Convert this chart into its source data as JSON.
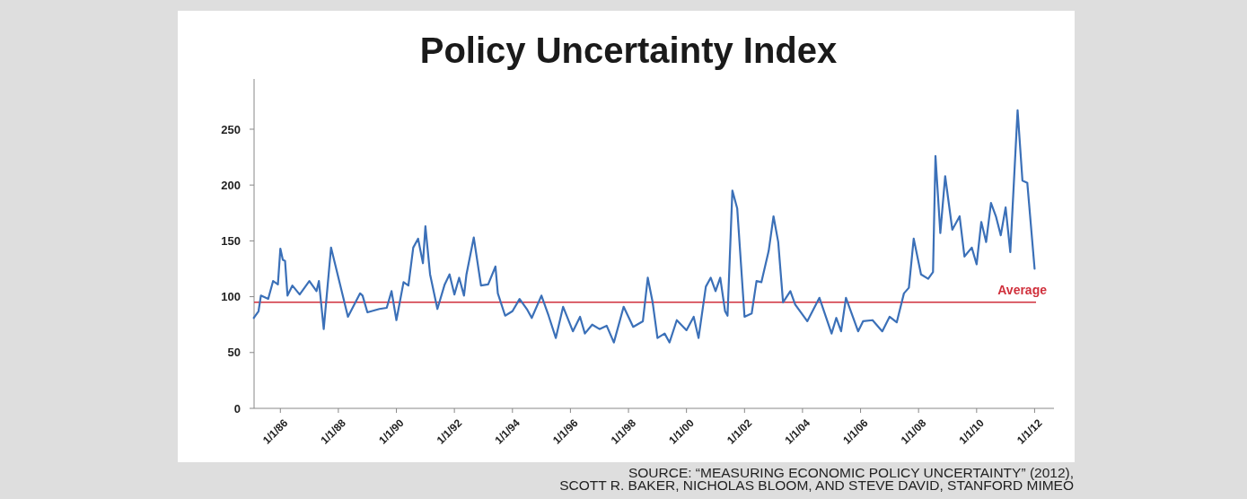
{
  "chart_data": {
    "type": "line",
    "title": "Policy Uncertainty Index",
    "x": [
      "1985-02",
      "1985-04",
      "1985-05",
      "1985-08",
      "1985-10",
      "1985-12",
      "1986-01",
      "1986-02",
      "1986-03",
      "1986-04",
      "1986-06",
      "1986-09",
      "1987-01",
      "1987-04",
      "1987-05",
      "1987-07",
      "1987-10",
      "1988-05",
      "1988-10",
      "1988-11",
      "1989-01",
      "1989-06",
      "1989-09",
      "1989-11",
      "1990-01",
      "1990-04",
      "1990-06",
      "1990-08",
      "1990-10",
      "1990-12",
      "1991-01",
      "1991-03",
      "1991-06",
      "1991-09",
      "1991-11",
      "1992-01",
      "1992-03",
      "1992-05",
      "1992-06",
      "1992-09",
      "1992-12",
      "1993-03",
      "1993-06",
      "1993-07",
      "1993-10",
      "1994-01",
      "1994-04",
      "1994-07",
      "1994-09",
      "1995-01",
      "1995-04",
      "1995-07",
      "1995-10",
      "1996-02",
      "1996-05",
      "1996-07",
      "1996-10",
      "1997-01",
      "1997-04",
      "1997-07",
      "1997-11",
      "1998-03",
      "1998-07",
      "1998-09",
      "1998-11",
      "1999-01",
      "1999-04",
      "1999-06",
      "1999-09",
      "2000-01",
      "2000-04",
      "2000-06",
      "2000-09",
      "2000-11",
      "2001-01",
      "2001-03",
      "2001-05",
      "2001-06",
      "2001-08",
      "2001-10",
      "2002-01",
      "2002-04",
      "2002-06",
      "2002-08",
      "2002-11",
      "2003-01",
      "2003-03",
      "2003-05",
      "2003-08",
      "2003-10",
      "2004-03",
      "2004-08",
      "2005-01",
      "2005-03",
      "2005-05",
      "2005-07",
      "2005-12",
      "2006-02",
      "2006-06",
      "2006-10",
      "2007-01",
      "2007-04",
      "2007-07",
      "2007-09",
      "2007-11",
      "2008-02",
      "2008-05",
      "2008-07",
      "2008-08",
      "2008-10",
      "2008-12",
      "2009-03",
      "2009-06",
      "2009-08",
      "2009-11",
      "2010-01",
      "2010-03",
      "2010-05",
      "2010-07",
      "2010-09",
      "2010-11",
      "2011-01",
      "2011-03",
      "2011-06",
      "2011-08",
      "2011-10",
      "2012-01"
    ],
    "series": [
      {
        "color": "#3b70b8",
        "values": [
          81,
          87,
          101,
          98,
          114,
          111,
          143,
          133,
          132,
          101,
          110,
          102,
          114,
          105,
          114,
          71,
          144,
          82,
          103,
          101,
          86,
          89,
          90,
          105,
          79,
          113,
          110,
          144,
          152,
          130,
          163,
          120,
          89,
          111,
          120,
          102,
          117,
          101,
          120,
          153,
          110,
          111,
          127,
          103,
          83,
          87,
          98,
          89,
          81,
          101,
          83,
          63,
          91,
          69,
          82,
          67,
          75,
          71,
          74,
          59,
          91,
          73,
          78,
          117,
          95,
          63,
          67,
          59,
          79,
          70,
          82,
          63,
          109,
          117,
          105,
          117,
          87,
          83,
          195,
          179,
          82,
          85,
          114,
          113,
          141,
          172,
          149,
          95,
          105,
          93,
          78,
          99,
          67,
          81,
          69,
          99,
          69,
          78,
          79,
          69,
          82,
          77,
          103,
          108,
          152,
          120,
          116,
          122,
          226,
          157,
          208,
          160,
          172,
          136,
          144,
          129,
          167,
          149,
          184,
          172,
          155,
          180,
          140,
          267,
          204,
          202,
          125
        ]
      }
    ],
    "xlim": [
      "1985-01",
      "2012-09"
    ],
    "xticks": [
      {
        "value": "1986-01-01",
        "label": "1/1/86"
      },
      {
        "value": "1988-01-01",
        "label": "1/1/88"
      },
      {
        "value": "1990-01-01",
        "label": "1/1/90"
      },
      {
        "value": "1992-01-01",
        "label": "1/1/92"
      },
      {
        "value": "1994-01-01",
        "label": "1/1/94"
      },
      {
        "value": "1996-01-01",
        "label": "1/1/96"
      },
      {
        "value": "1998-01-01",
        "label": "1/1/98"
      },
      {
        "value": "2000-01-01",
        "label": "1/1/00"
      },
      {
        "value": "2002-01-01",
        "label": "1/1/02"
      },
      {
        "value": "2004-01-01",
        "label": "1/1/04"
      },
      {
        "value": "2006-01-01",
        "label": "1/1/06"
      },
      {
        "value": "2008-01-01",
        "label": "1/1/08"
      },
      {
        "value": "2010-01-01",
        "label": "1/1/10"
      },
      {
        "value": "2012-01-01",
        "label": "1/1/12"
      }
    ],
    "ylim": [
      0,
      295
    ],
    "yticks": [
      0,
      50,
      100,
      150,
      200,
      250
    ],
    "ref_lines": [
      {
        "axis": "y",
        "value": 95,
        "label": "Average",
        "color": "#d0303c"
      }
    ],
    "annotations": [
      "SOURCE: “MEASURING ECONOMIC POLICY UNCERTAINTY” (2012),",
      "SCOTT R. BAKER, NICHOLAS BLOOM, AND STEVE DAVID, STANFORD MIMEO"
    ],
    "grid": false
  }
}
